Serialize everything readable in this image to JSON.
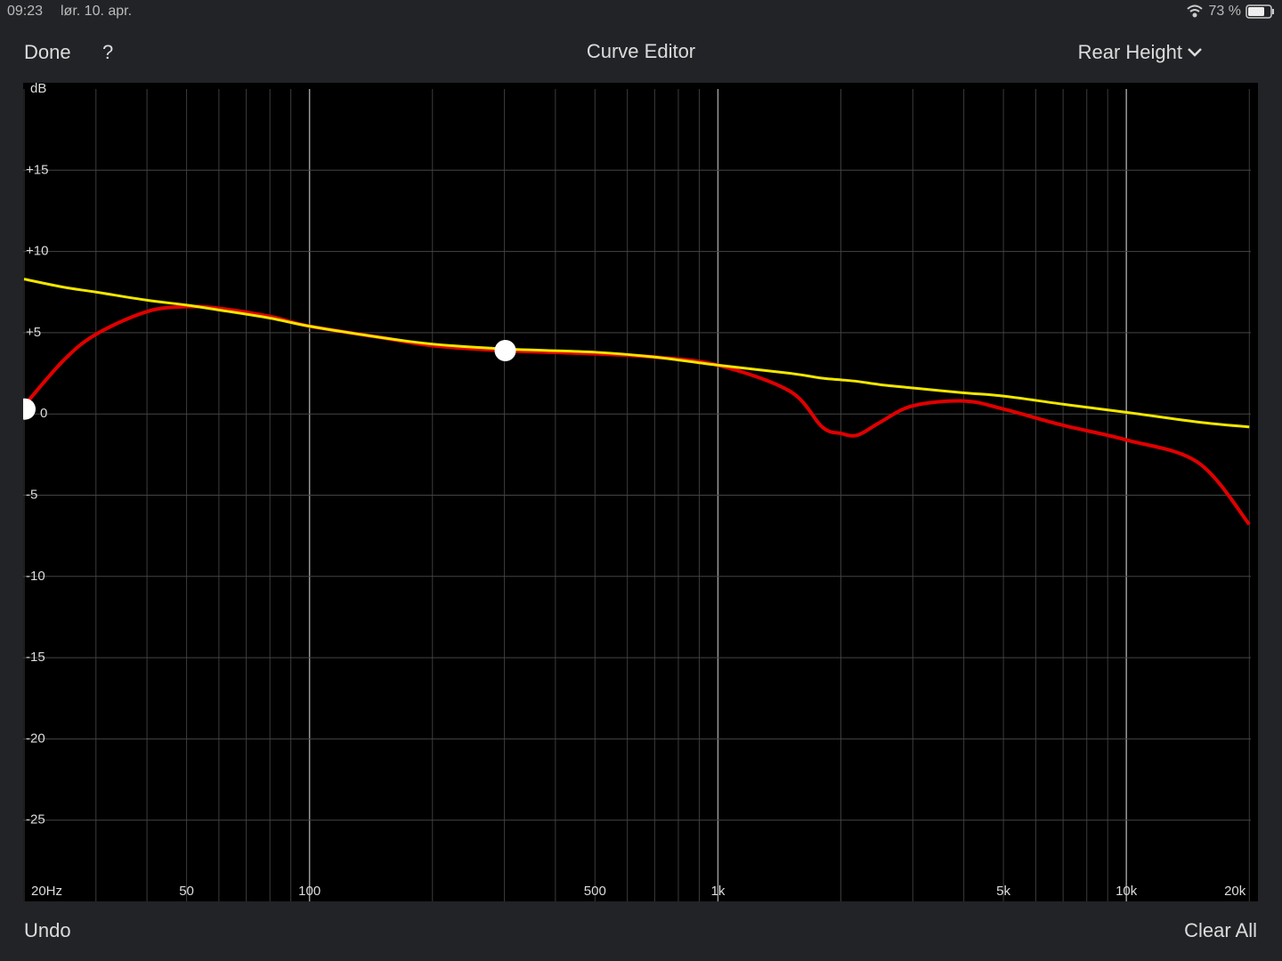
{
  "ui": {
    "status_time": "09:23",
    "status_date": "lør. 10. apr.",
    "battery": "73 %",
    "done": "Done",
    "help": "?",
    "title": "Curve Editor",
    "channel": "Rear Height",
    "undo": "Undo",
    "clear_all": "Clear All"
  },
  "chart_data": {
    "type": "line",
    "y_label": "dB",
    "log_x": true,
    "grid": true,
    "xlim": [
      20,
      21000
    ],
    "ylim": [
      -30,
      20
    ],
    "xticks": [
      {
        "value": 20,
        "label": "20Hz"
      },
      50,
      100,
      500,
      {
        "value": 1000,
        "label": "1k"
      },
      {
        "value": 5000,
        "label": "5k"
      },
      {
        "value": 10000,
        "label": "10k"
      },
      {
        "value": 20000,
        "label": "20k"
      }
    ],
    "minor_xticks": [
      30,
      40,
      60,
      70,
      80,
      90,
      200,
      300,
      400,
      600,
      700,
      800,
      900,
      2000,
      3000,
      4000,
      6000,
      7000,
      8000,
      9000
    ],
    "yticks": [
      {
        "value": 15,
        "label": "+15"
      },
      {
        "value": 10,
        "label": "+10"
      },
      {
        "value": 5,
        "label": "+5"
      },
      0,
      -5,
      -10,
      -15,
      -20,
      -25
    ],
    "x": [
      20,
      25,
      30,
      40,
      50,
      60,
      80,
      100,
      150,
      200,
      300,
      500,
      700,
      1000,
      1500,
      1800,
      2000,
      2200,
      2500,
      3000,
      4000,
      5000,
      7000,
      10000,
      15000,
      20000
    ],
    "series": [
      {
        "color": "#e00000",
        "values": [
          0.5,
          3.3,
          4.9,
          6.3,
          6.6,
          6.5,
          6.0,
          5.4,
          4.7,
          4.2,
          3.9,
          3.7,
          3.5,
          3.0,
          1.4,
          -0.8,
          -1.2,
          -1.3,
          -0.5,
          0.5,
          0.8,
          0.3,
          -0.7,
          -1.6,
          -3.0,
          -6.8
        ]
      },
      {
        "color": "#f2e600",
        "values": [
          8.3,
          7.8,
          7.5,
          7.0,
          6.7,
          6.4,
          5.9,
          5.4,
          4.7,
          4.3,
          4.0,
          3.8,
          3.5,
          3.0,
          2.5,
          2.2,
          2.1,
          2.0,
          1.8,
          1.6,
          1.3,
          1.1,
          0.6,
          0.1,
          -0.5,
          -0.8
        ]
      }
    ],
    "control_points": {
      "color": "#ffffff",
      "x": [
        20,
        300
      ],
      "values": [
        0.3,
        3.9
      ]
    }
  }
}
